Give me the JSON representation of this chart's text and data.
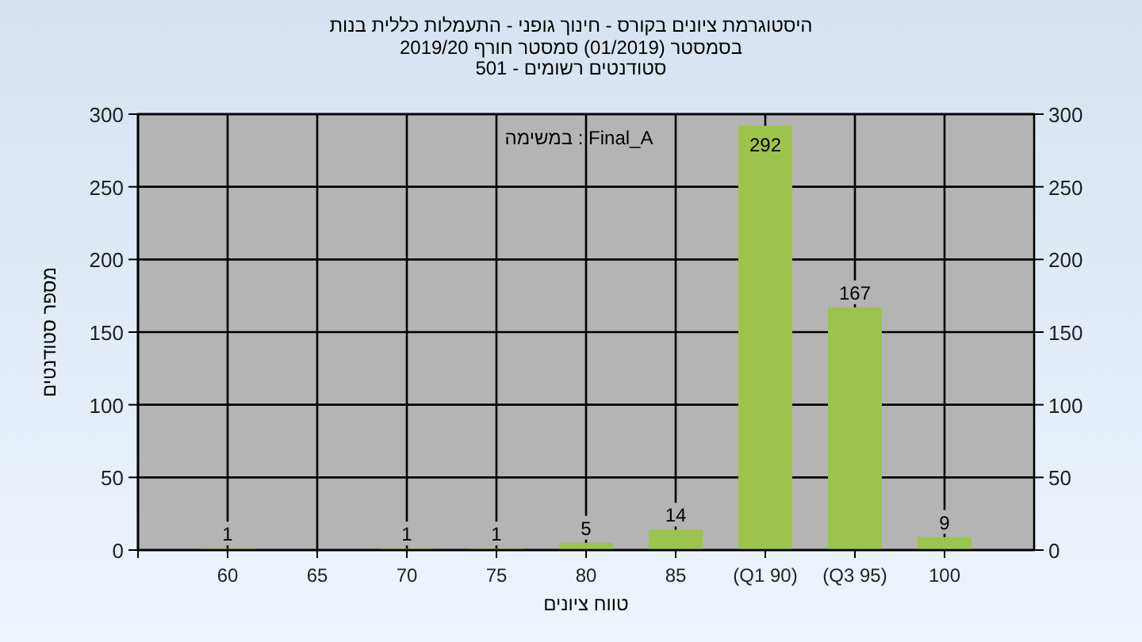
{
  "chart_data": {
    "type": "bar",
    "title": "היסטוגרמת ציונים בקורס - חינוך גופני - התעמלות כללית בנות",
    "subtitle": "בסמסטר  (01/2019)  סמסטר חורף 2019/20\nסטודנטים רשומים - 501",
    "xlabel": "טווח ציונים",
    "ylabel": "מספר סטודנטים",
    "annotations": [
      "במשימה : Final_A"
    ],
    "categories": [
      "60",
      "65",
      "70",
      "75",
      "80",
      "85",
      "(Q1 90)",
      "(Q3 95)",
      "100"
    ],
    "values": [
      1,
      0,
      1,
      1,
      5,
      14,
      292,
      167,
      9
    ],
    "value_labels": [
      "1",
      null,
      "1",
      "1",
      "5",
      "14",
      "292",
      "167",
      "9"
    ],
    "color": "#9cc44c",
    "ylim": [
      0,
      300
    ],
    "yticks": [
      0,
      50,
      100,
      150,
      200,
      250,
      300
    ],
    "y2lim": [
      0,
      300
    ],
    "y2ticks": [
      0,
      50,
      100,
      150,
      200,
      250,
      300
    ],
    "grid": true
  }
}
